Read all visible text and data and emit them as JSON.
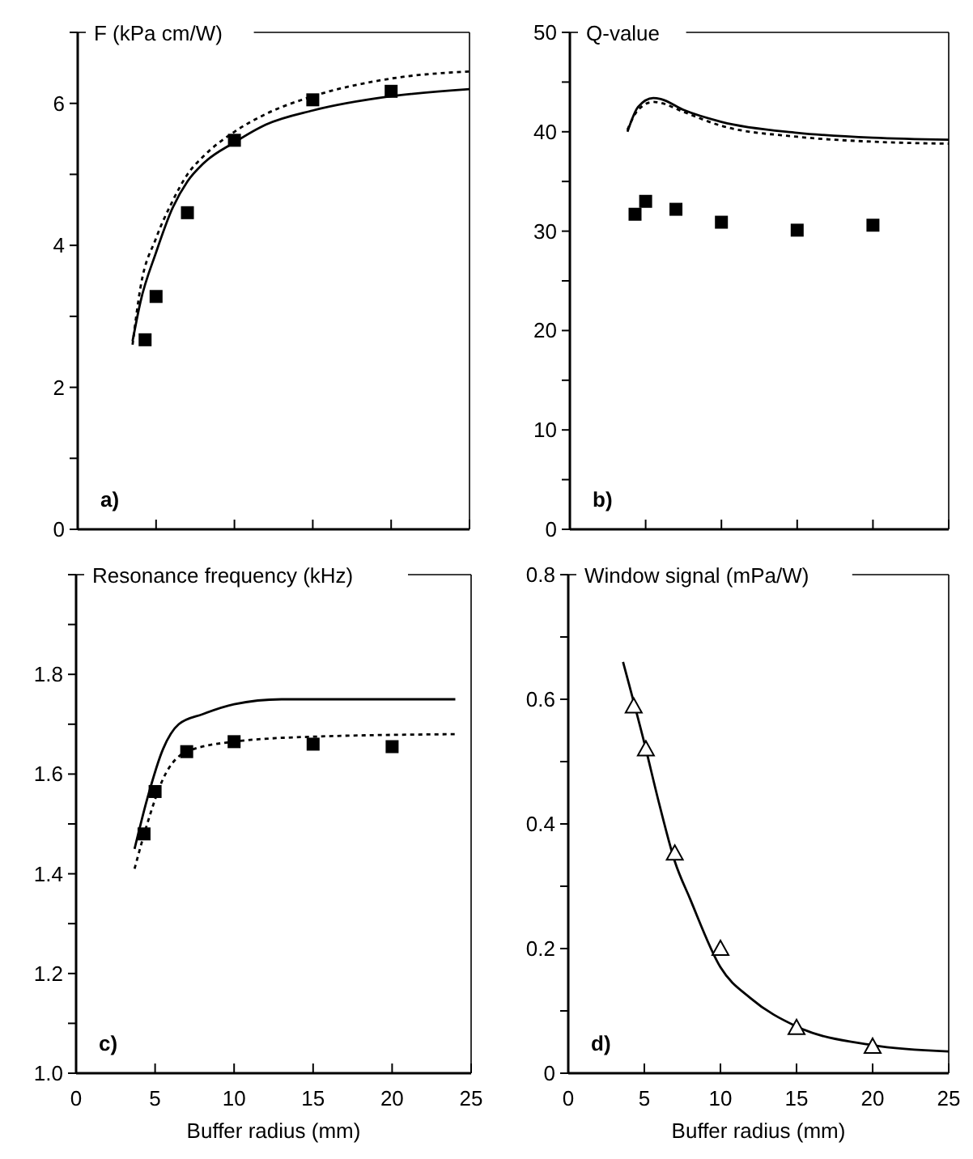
{
  "chart_data": [
    {
      "type": "scatter",
      "title": "F (kPa cm/W)",
      "annotations": [
        "a)"
      ],
      "xlim": [
        0,
        25
      ],
      "xticks": [
        {
          "value": 0,
          "label": null
        },
        {
          "value": 5,
          "label": null
        },
        {
          "value": 10,
          "label": null
        },
        {
          "value": 15,
          "label": null
        },
        {
          "value": 20,
          "label": null
        },
        {
          "value": 25,
          "label": null
        }
      ],
      "ylim": [
        0,
        7
      ],
      "yticks": [
        0,
        {
          "value": 1,
          "label": null
        },
        2,
        {
          "value": 3,
          "label": null
        },
        4,
        {
          "value": 5,
          "label": null
        },
        6,
        {
          "value": 7,
          "label": null
        }
      ],
      "tick_labels": "y",
      "grid": false,
      "series": [
        {
          "type": "line",
          "line_style": "solid",
          "marker": "none",
          "color": "#000000",
          "x": [
            3.5,
            4,
            5,
            6,
            7,
            8,
            10,
            12,
            15,
            20,
            25
          ],
          "values": [
            2.65,
            3.2,
            3.9,
            4.5,
            4.9,
            5.15,
            5.45,
            5.7,
            5.9,
            6.1,
            6.2
          ]
        },
        {
          "type": "line",
          "line_style": "dotted",
          "marker": "none",
          "color": "#000000",
          "x": [
            3.5,
            4,
            5,
            6,
            7,
            8,
            10,
            12,
            15,
            20,
            25
          ],
          "values": [
            2.6,
            3.4,
            4.1,
            4.6,
            5.0,
            5.25,
            5.6,
            5.85,
            6.1,
            6.35,
            6.45
          ]
        },
        {
          "marker": "square",
          "color": "#000000",
          "x": [
            4.3,
            5,
            7,
            10,
            15,
            20
          ],
          "values": [
            2.67,
            3.28,
            4.46,
            5.48,
            6.05,
            6.17
          ]
        }
      ]
    },
    {
      "type": "scatter",
      "title": "Q-value",
      "annotations": [
        "b)"
      ],
      "xlim": [
        0,
        25
      ],
      "xticks": [
        {
          "value": 0,
          "label": null
        },
        {
          "value": 5,
          "label": null
        },
        {
          "value": 10,
          "label": null
        },
        {
          "value": 15,
          "label": null
        },
        {
          "value": 20,
          "label": null
        },
        {
          "value": 25,
          "label": null
        }
      ],
      "ylim": [
        0,
        50
      ],
      "yticks": [
        0,
        {
          "value": 5,
          "label": null
        },
        10,
        {
          "value": 15,
          "label": null
        },
        20,
        {
          "value": 25,
          "label": null
        },
        30,
        {
          "value": 35,
          "label": null
        },
        40,
        {
          "value": 45,
          "label": null
        },
        50
      ],
      "tick_labels": "y",
      "grid": false,
      "series": [
        {
          "type": "line",
          "line_style": "solid",
          "marker": "none",
          "color": "#000000",
          "x": [
            3.8,
            4.5,
            5.5,
            6,
            7.5,
            10,
            15,
            20,
            25
          ],
          "values": [
            40,
            42.5,
            43.4,
            43.3,
            42.2,
            41,
            39.9,
            39.4,
            39.2
          ]
        },
        {
          "type": "line",
          "line_style": "dotted",
          "marker": "none",
          "color": "#000000",
          "x": [
            3.8,
            4.5,
            5.5,
            6,
            7.5,
            10,
            15,
            20,
            25
          ],
          "values": [
            40.2,
            42.2,
            43,
            42.9,
            42,
            40.6,
            39.5,
            39,
            38.8
          ]
        },
        {
          "marker": "square",
          "color": "#000000",
          "x": [
            4.3,
            5,
            7,
            10,
            15,
            20
          ],
          "values": [
            31.7,
            33.0,
            32.2,
            30.9,
            30.1,
            30.6
          ]
        }
      ]
    },
    {
      "type": "scatter",
      "title": "Resonance frequency (kHz)",
      "xlabel": "Buffer radius (mm)",
      "annotations": [
        "c)"
      ],
      "xlim": [
        0,
        25
      ],
      "xticks": [
        0,
        5,
        10,
        15,
        20,
        25
      ],
      "ylim": [
        1.0,
        2.0
      ],
      "yticks": [
        {
          "value": 1.0,
          "label": "1.0"
        },
        {
          "value": 1.1,
          "label": null
        },
        1.2,
        {
          "value": 1.3,
          "label": null
        },
        1.4,
        {
          "value": 1.5,
          "label": null
        },
        1.6,
        {
          "value": 1.7,
          "label": null
        },
        1.8,
        {
          "value": 1.9,
          "label": null
        },
        {
          "value": 2.0,
          "label": null
        }
      ],
      "grid": false,
      "series": [
        {
          "type": "line",
          "line_style": "solid",
          "marker": "none",
          "color": "#000000",
          "x": [
            3.7,
            4.5,
            5.5,
            6.5,
            8,
            10,
            13,
            24
          ],
          "values": [
            1.45,
            1.55,
            1.65,
            1.7,
            1.72,
            1.74,
            1.75,
            1.75
          ]
        },
        {
          "type": "line",
          "line_style": "dotted",
          "marker": "none",
          "color": "#000000",
          "x": [
            3.7,
            4.5,
            5.5,
            7,
            10,
            15,
            24
          ],
          "values": [
            1.41,
            1.5,
            1.59,
            1.645,
            1.665,
            1.675,
            1.68
          ]
        },
        {
          "marker": "square",
          "color": "#000000",
          "x": [
            4.3,
            5,
            7,
            10,
            15,
            20
          ],
          "values": [
            1.48,
            1.565,
            1.645,
            1.665,
            1.66,
            1.655
          ]
        }
      ]
    },
    {
      "type": "scatter",
      "title": "Window signal (mPa/W)",
      "xlabel": "Buffer radius (mm)",
      "annotations": [
        "d)"
      ],
      "xlim": [
        0,
        25
      ],
      "xticks": [
        0,
        5,
        10,
        15,
        20,
        25
      ],
      "ylim": [
        0,
        0.8
      ],
      "yticks": [
        0,
        {
          "value": 0.1,
          "label": null
        },
        0.2,
        {
          "value": 0.3,
          "label": null
        },
        0.4,
        {
          "value": 0.5,
          "label": null
        },
        0.6,
        {
          "value": 0.7,
          "label": null
        },
        0.8
      ],
      "grid": false,
      "series": [
        {
          "type": "line",
          "line_style": "solid",
          "marker": "none",
          "color": "#000000",
          "x": [
            3.6,
            5,
            6,
            7,
            8,
            10,
            12,
            15,
            20,
            25
          ],
          "values": [
            0.66,
            0.53,
            0.43,
            0.34,
            0.28,
            0.17,
            0.12,
            0.075,
            0.045,
            0.035
          ]
        },
        {
          "marker": "triangle",
          "color": "#000000",
          "x": [
            4.3,
            5.1,
            7,
            10,
            15,
            20
          ],
          "values": [
            0.589,
            0.52,
            0.353,
            0.2,
            0.073,
            0.043
          ]
        }
      ]
    }
  ]
}
